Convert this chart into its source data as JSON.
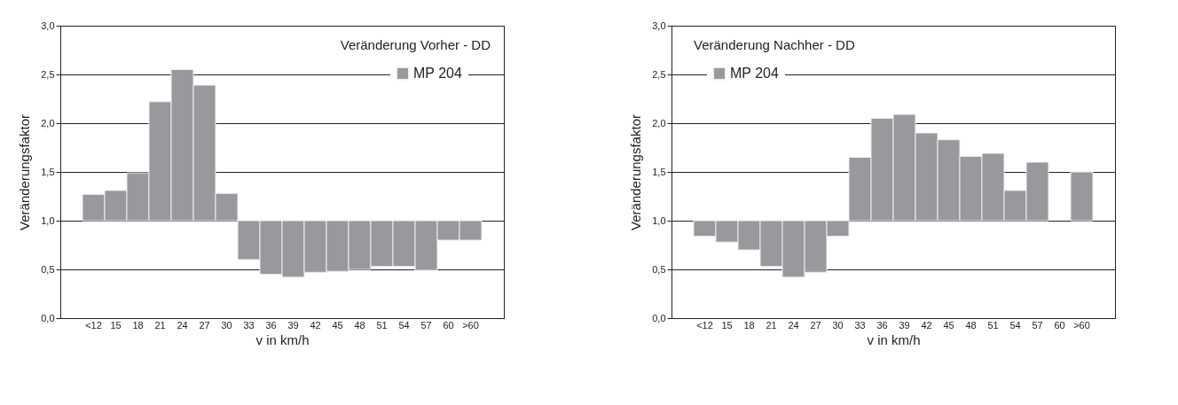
{
  "chart_data": [
    {
      "type": "bar",
      "title": "Veränderung Vorher - DD",
      "xlabel": "v in km/h",
      "ylabel": "Veränderungsfaktor",
      "categories": [
        "<12",
        "15",
        "18",
        "21",
        "24",
        "27",
        "30",
        "33",
        "36",
        "39",
        "42",
        "45",
        "48",
        "51",
        "54",
        "57",
        "60",
        ">60"
      ],
      "series": [
        {
          "name": "MP 204",
          "color": "#99989d",
          "values": [
            0.27,
            0.31,
            0.49,
            1.22,
            1.55,
            1.39,
            0.28,
            -0.4,
            -0.55,
            -0.58,
            -0.53,
            -0.52,
            -0.5,
            -0.47,
            -0.47,
            -0.51,
            -0.2,
            -0.2
          ],
          "base": [
            1,
            1,
            1,
            1,
            1,
            1,
            1,
            1,
            1,
            1,
            1,
            1,
            1,
            1,
            1,
            1,
            1,
            1
          ]
        }
      ],
      "ylim": [
        0,
        3
      ],
      "yticks": [
        {
          "value": 0,
          "label": "0,0"
        },
        {
          "value": 0.5,
          "label": "0,5"
        },
        {
          "value": 1,
          "label": "1,0"
        },
        {
          "value": 1.5,
          "label": "1,5"
        },
        {
          "value": 2,
          "label": "2,0"
        },
        {
          "value": 2.5,
          "label": "2,5"
        },
        {
          "value": 3,
          "label": "3,0"
        }
      ],
      "grid": "y",
      "legend": "top right"
    },
    {
      "type": "bar",
      "title": "Veränderung Nachher - DD",
      "xlabel": "v in km/h",
      "ylabel": "Veränderungsfaktor",
      "categories": [
        "<12",
        "15",
        "18",
        "21",
        "24",
        "27",
        "30",
        "33",
        "36",
        "39",
        "42",
        "45",
        "48",
        "51",
        "54",
        "57",
        "60",
        ">60"
      ],
      "series": [
        {
          "name": "MP 204",
          "color": "#99989d",
          "values": [
            -0.16,
            -0.22,
            -0.3,
            -0.47,
            -0.58,
            -0.53,
            -0.16,
            0.65,
            1.05,
            1.09,
            0.9,
            0.83,
            0.66,
            0.69,
            0.31,
            0.6,
            null,
            0.5
          ],
          "base": [
            1,
            1,
            1,
            1,
            1,
            1,
            1,
            1,
            1,
            1,
            1,
            1,
            1,
            1,
            1,
            1,
            null,
            1
          ]
        }
      ],
      "ylim": [
        0,
        3
      ],
      "yticks": [
        {
          "value": 0,
          "label": "0,0"
        },
        {
          "value": 0.5,
          "label": "0,5"
        },
        {
          "value": 1,
          "label": "1,0"
        },
        {
          "value": 1.5,
          "label": "1,5"
        },
        {
          "value": 2,
          "label": "2,0"
        },
        {
          "value": 2.5,
          "label": "2,5"
        },
        {
          "value": 3,
          "label": "3,0"
        }
      ],
      "grid": "y",
      "legend": "top left"
    }
  ]
}
